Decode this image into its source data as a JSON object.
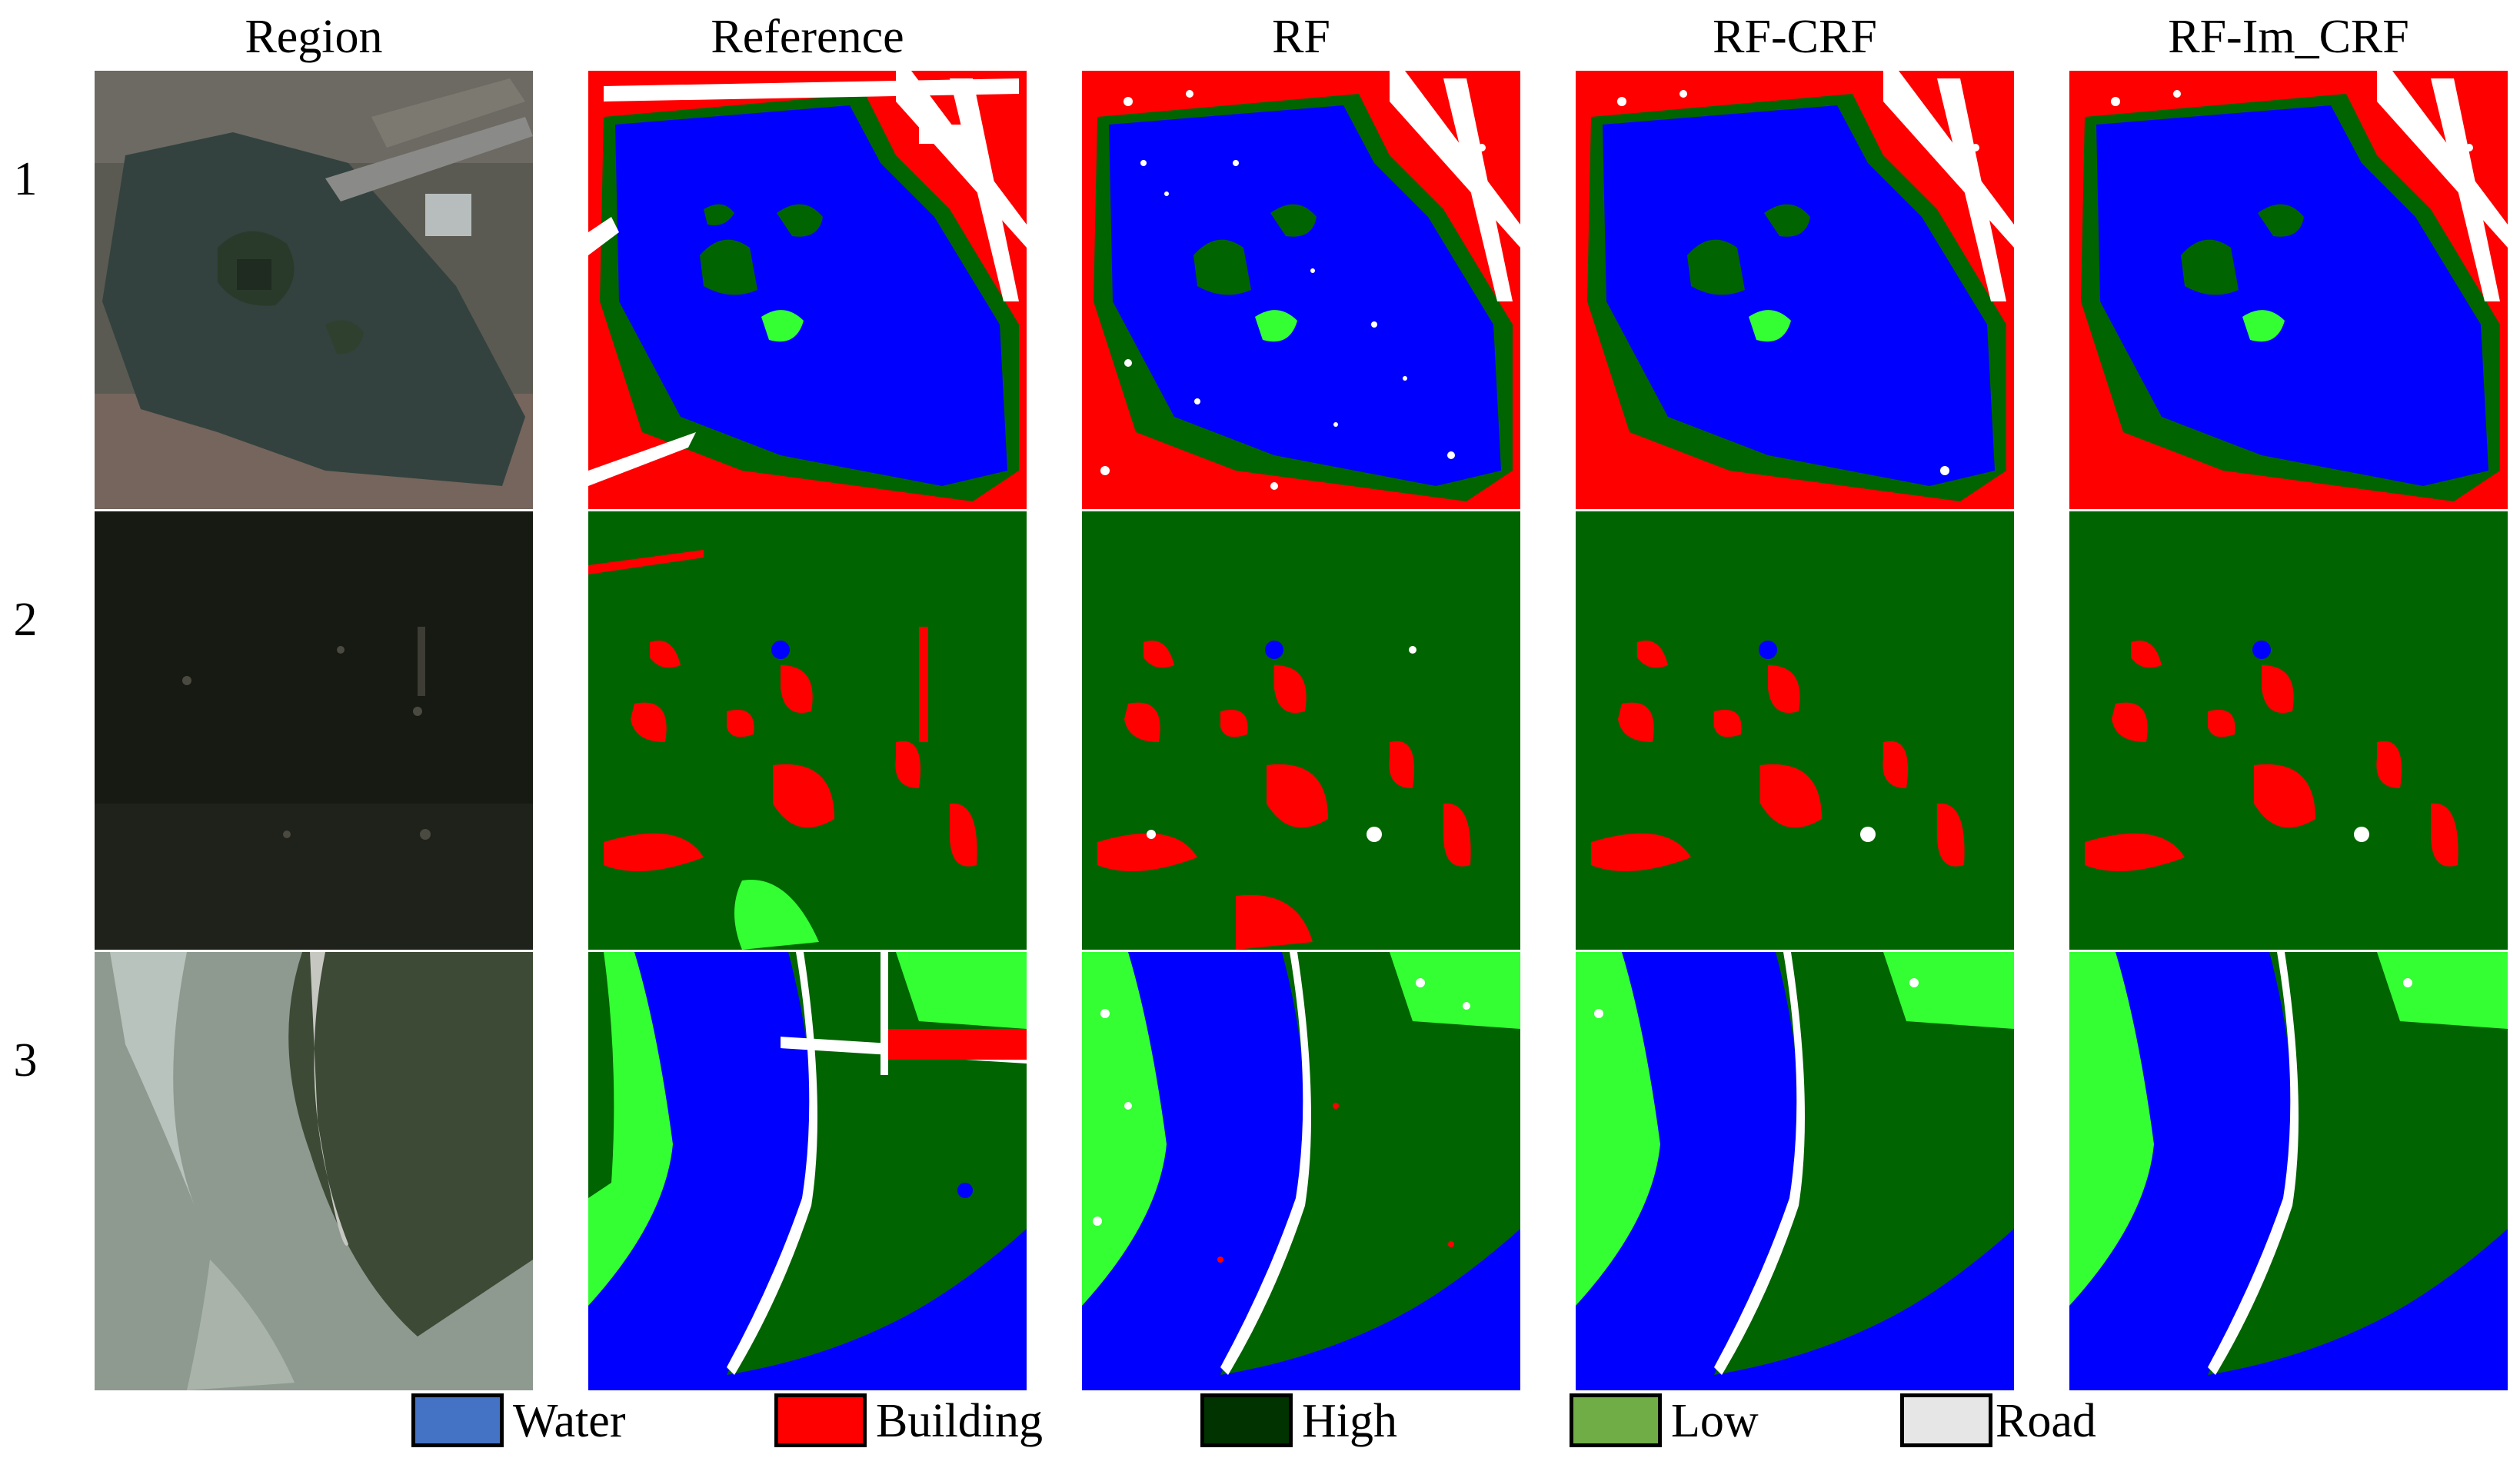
{
  "columns": [
    "Region",
    "Reference",
    "RF",
    "RF-CRF",
    "RF-Im_CRF"
  ],
  "rows": [
    "1",
    "2",
    "3"
  ],
  "legend": [
    {
      "label": "Water",
      "color": "#4472c4"
    },
    {
      "label": "Building",
      "color": "#ff0000"
    },
    {
      "label": "High",
      "color": "#003300"
    },
    {
      "label": "Low",
      "color": "#70ad47"
    },
    {
      "label": "Road",
      "color": "#e7e6e6"
    }
  ],
  "class_colors": {
    "water": "#0000ff",
    "building": "#ff0000",
    "high": "#006400",
    "low": "#33ff33",
    "road": "#ffffff"
  }
}
